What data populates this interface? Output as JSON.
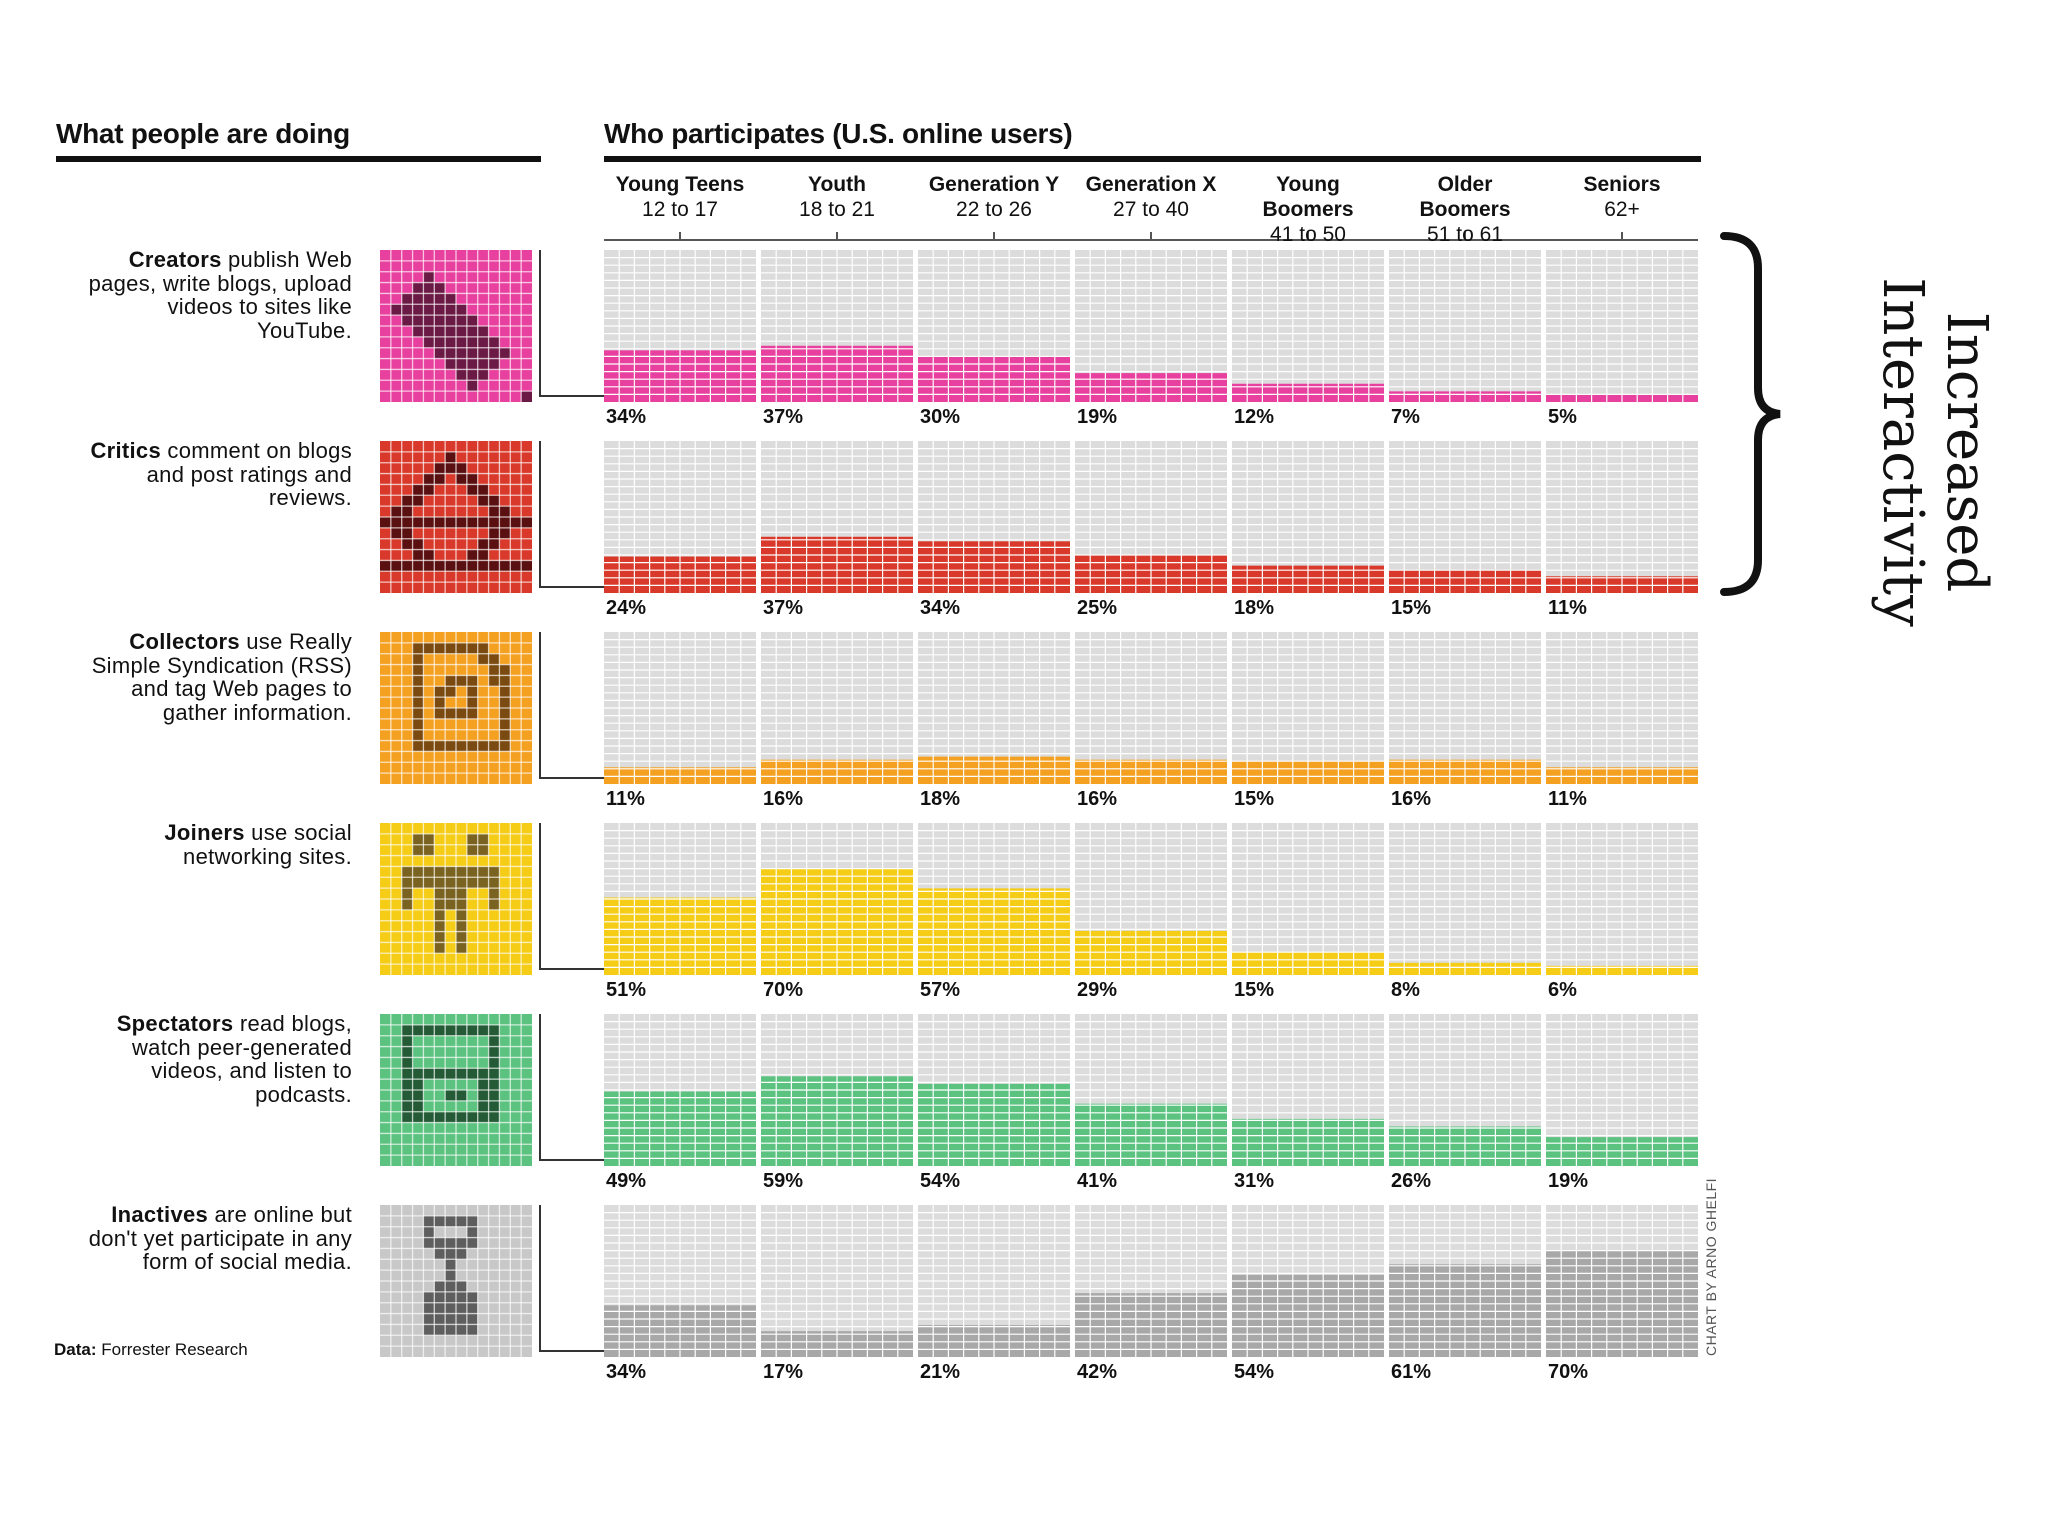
{
  "headers": {
    "left": "What people are doing",
    "right": "Who participates (U.S. online users)"
  },
  "chart_data": {
    "type": "bar",
    "title": "Who participates (U.S. online users)",
    "categories": [
      {
        "name": "Young Teens",
        "ages": "12 to 17"
      },
      {
        "name": "Youth",
        "ages": "18 to 21"
      },
      {
        "name": "Generation Y",
        "ages": "22 to 26"
      },
      {
        "name": "Generation X",
        "ages": "27 to 40"
      },
      {
        "name": "Young Boomers",
        "ages": "41 to 50"
      },
      {
        "name": "Older Boomers",
        "ages": "51 to 61"
      },
      {
        "name": "Seniors",
        "ages": "62+"
      }
    ],
    "ylim": [
      0,
      100
    ],
    "unit": "%",
    "series": [
      {
        "name": "Creators",
        "desc": "publish Web pages, write blogs, upload videos to sites like YouTube.",
        "color": "#e8409e",
        "values": [
          34,
          37,
          30,
          19,
          12,
          7,
          5
        ],
        "labels": [
          "34%",
          "37%",
          "30%",
          "19%",
          "12%",
          "7%",
          "5%"
        ]
      },
      {
        "name": "Critics",
        "desc": "comment on blogs and post ratings and reviews.",
        "color": "#d9392a",
        "values": [
          24,
          37,
          34,
          25,
          18,
          15,
          11
        ],
        "labels": [
          "24%",
          "37%",
          "34%",
          "25%",
          "18%",
          "15%",
          "11%"
        ]
      },
      {
        "name": "Collectors",
        "desc": "use Really Simple Syndication (RSS) and tag Web pages to gather information.",
        "color": "#f4a021",
        "values": [
          11,
          16,
          18,
          16,
          15,
          16,
          11
        ],
        "labels": [
          "11%",
          "16%",
          "18%",
          "16%",
          "15%",
          "16%",
          "11%"
        ]
      },
      {
        "name": "Joiners",
        "desc": "use social networking sites.",
        "color": "#f5cc16",
        "values": [
          51,
          70,
          57,
          29,
          15,
          8,
          6
        ],
        "labels": [
          "51%",
          "70%",
          "57%",
          "29%",
          "15%",
          "8%",
          "6%"
        ]
      },
      {
        "name": "Spectators",
        "desc": "read blogs, watch peer-generated videos, and listen to podcasts.",
        "color": "#5cc27f",
        "values": [
          49,
          59,
          54,
          41,
          31,
          26,
          19
        ],
        "labels": [
          "49%",
          "59%",
          "54%",
          "41%",
          "31%",
          "26%",
          "19%"
        ]
      },
      {
        "name": "Inactives",
        "desc": "are online but don't yet participate in any form of social media.",
        "color": "#a8a8a8",
        "values": [
          34,
          17,
          21,
          42,
          54,
          61,
          70
        ],
        "labels": [
          "34%",
          "17%",
          "21%",
          "42%",
          "54%",
          "61%",
          "70%"
        ]
      }
    ]
  },
  "source": {
    "label": "Data:",
    "text": "Forrester Research"
  },
  "credit": "CHART BY ARNO GHELFI",
  "annotation": {
    "line1": "Increased",
    "line2": "Interactivity"
  }
}
